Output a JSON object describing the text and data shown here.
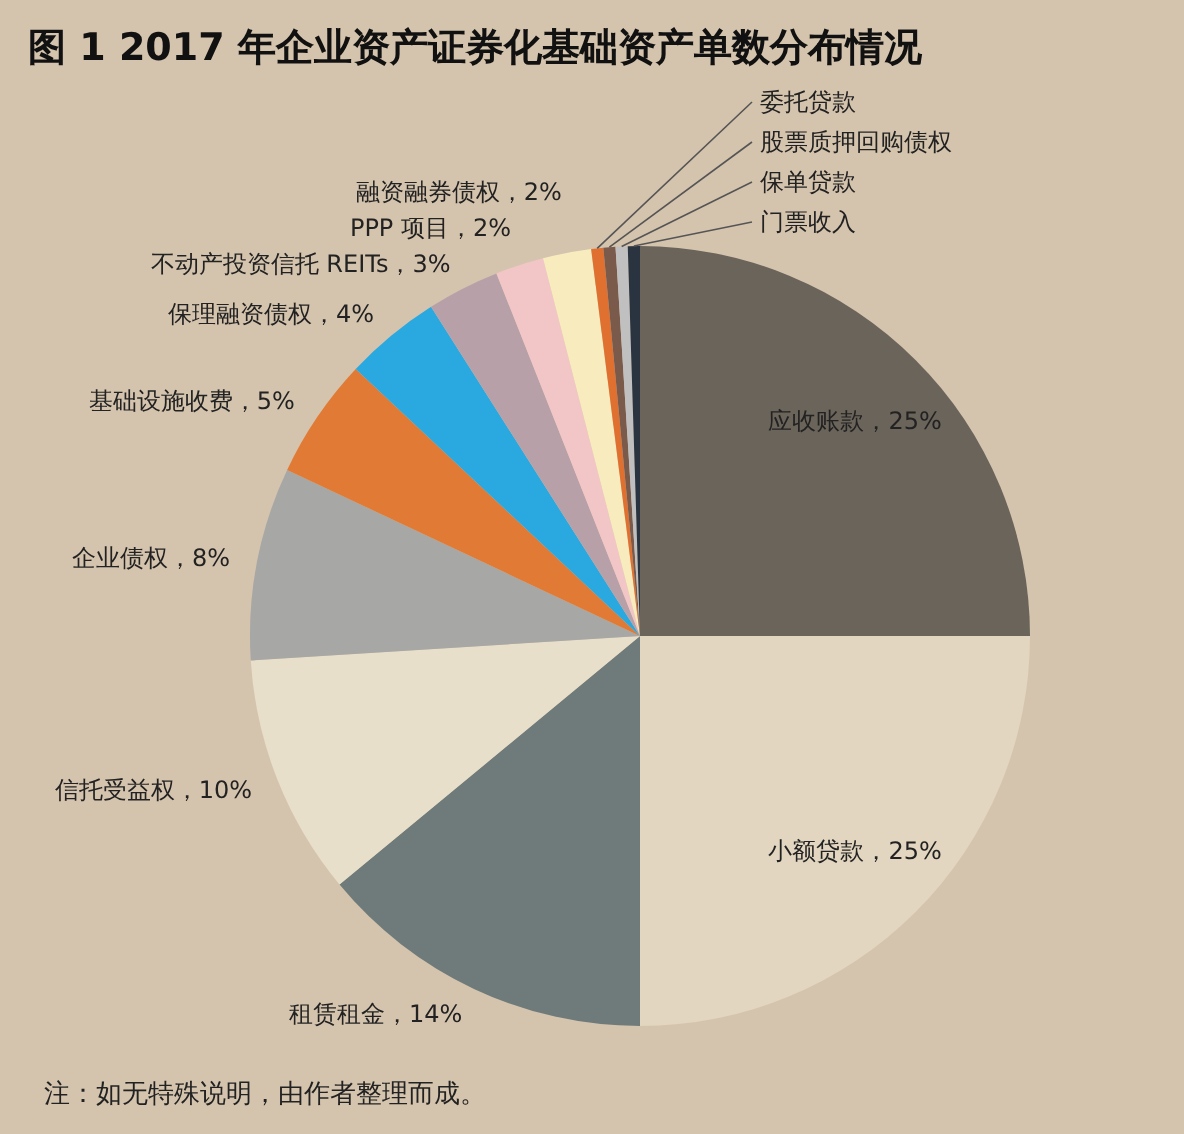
{
  "chart_data": {
    "type": "pie",
    "title": "图 1  2017 年企业资产证券化基础资产单数分布情况",
    "categories": [
      "应收账款",
      "小额贷款",
      "租赁租金",
      "信托受益权",
      "企业债权",
      "基础设施收费",
      "保理融资债权",
      "不动产投资信托 REITs",
      "PPP 项目",
      "融资融券债权",
      "委托贷款",
      "股票质押回购债权",
      "保单贷款",
      "门票收入"
    ],
    "values": [
      25,
      25,
      14,
      10,
      8,
      5,
      4,
      3,
      2,
      2,
      0.5,
      0.5,
      0.5,
      0.5
    ],
    "value_labels": [
      "25%",
      "25%",
      "14%",
      "10%",
      "8%",
      "5%",
      "4%",
      "3%",
      "2%",
      "2%",
      null,
      null,
      null,
      null
    ],
    "colors": [
      "#6b645a",
      "#e2d6c0",
      "#6f7b7a",
      "#e8dfcb",
      "#a7a7a5",
      "#e07a35",
      "#2aa8e0",
      "#b8a0a8",
      "#f2c6c6",
      "#f8ecbe",
      "#e07030",
      "#7a5a4a",
      "#c0c0c0",
      "#2a3440"
    ],
    "annotations": [
      "注：如无特殊说明，由作者整理而成。"
    ]
  }
}
